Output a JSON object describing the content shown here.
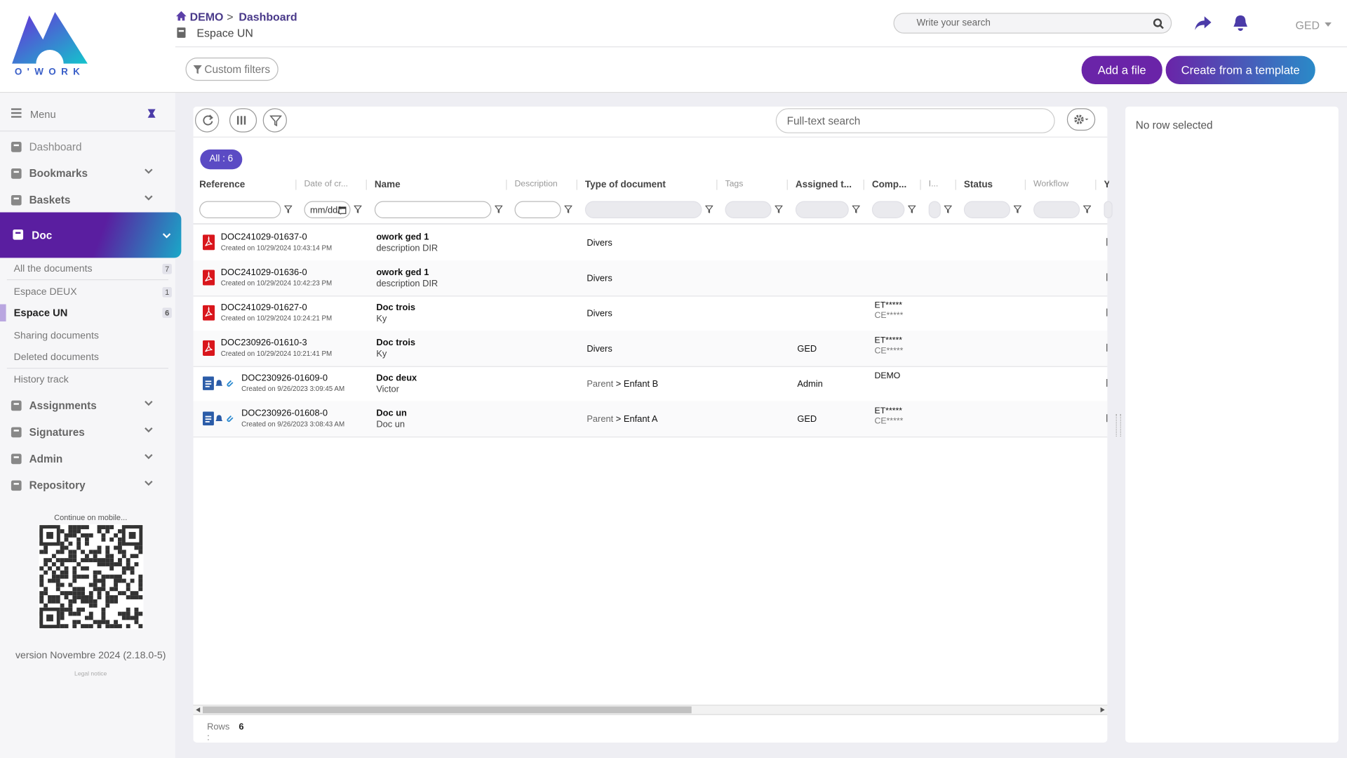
{
  "logo": {
    "text": "O'WORK"
  },
  "header": {
    "home": "DEMO",
    "separator": ">",
    "page": "Dashboard",
    "space": "Espace UN",
    "search_placeholder": "Write your search",
    "user": "GED"
  },
  "toolbar": {
    "custom_filters": "Custom filters",
    "add_file": "Add a file",
    "create_template": "Create from a template"
  },
  "sidebar": {
    "menu": "Menu",
    "items_top": [
      {
        "label": "Dashboard"
      },
      {
        "label": "Bookmarks"
      },
      {
        "label": "Baskets"
      }
    ],
    "active": "Doc",
    "subitems": [
      {
        "label": "All the documents",
        "count": 7
      },
      {
        "label": "Espace DEUX",
        "count": 1
      },
      {
        "label": "Espace UN",
        "count": 6
      },
      {
        "label": "Sharing documents"
      },
      {
        "label": "Deleted documents"
      },
      {
        "label": "History track"
      }
    ],
    "items_bottom": [
      {
        "label": "Assignments"
      },
      {
        "label": "Signatures"
      },
      {
        "label": "Admin"
      },
      {
        "label": "Repository"
      }
    ],
    "mobile": "Continue on mobile...",
    "version": "version Novembre 2024 (2.18.0-5)",
    "legal": "Legal notice"
  },
  "grid": {
    "fulltext_placeholder": "Full-text search",
    "chip": "All : 6",
    "date_placeholder": "mm/dd/yyyy",
    "columns": [
      "Reference",
      "Date of cr...",
      "Name",
      "Description",
      "Type of document",
      "Tags",
      "Assigned t...",
      "Comp...",
      "I...",
      "Status",
      "Workflow",
      "Y"
    ],
    "rows": [
      {
        "reference": "DOC241029-01637-0",
        "created": "Created on 10/29/2024 10:43:14 PM",
        "name": "owork ged 1",
        "description": "description DIR",
        "type": "Divers"
      },
      {
        "reference": "DOC241029-01636-0",
        "created": "Created on 10/29/2024 10:42:23 PM",
        "name": "owork ged 1",
        "description": "description DIR",
        "type": "Divers"
      },
      {
        "reference": "DOC241029-01627-0",
        "created": "Created on 10/29/2024 10:24:21 PM",
        "name": "Doc trois",
        "description": "Ky",
        "type": "Divers",
        "company": [
          "ET*****",
          "CE*****"
        ]
      },
      {
        "reference": "DOC230926-01610-3",
        "created": "Created on 10/29/2024 10:21:41 PM",
        "name": "Doc trois",
        "description": "Ky",
        "type": "Divers",
        "assigned": "GED",
        "company": [
          "ET*****",
          "CE*****"
        ]
      },
      {
        "reference": "DOC230926-01609-0",
        "created": "Created on 9/26/2023 3:09:45 AM",
        "name": "Doc deux",
        "description": "Victor",
        "type_path": {
          "parent": "Parent",
          "separator": ">",
          "child": "Enfant B"
        },
        "assigned": "Admin",
        "company": [
          "DEMO"
        ]
      },
      {
        "reference": "DOC230926-01608-0",
        "created": "Created on 9/26/2023 3:08:43 AM",
        "name": "Doc un",
        "description": "Doc un",
        "type_path": {
          "parent": "Parent",
          "separator": ">",
          "child": "Enfant A"
        },
        "assigned": "GED",
        "company": [
          "ET*****",
          "CE*****"
        ]
      }
    ],
    "rows_label": "Rows :",
    "rows_count": 6
  },
  "side_panel": {
    "empty": "No row selected"
  }
}
